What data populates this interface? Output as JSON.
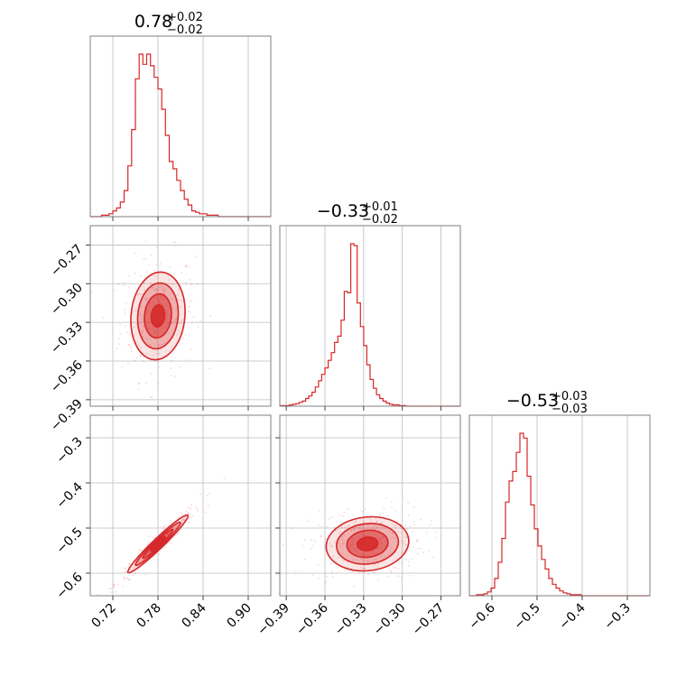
{
  "chart_data": {
    "type": "corner",
    "color": "#d62728",
    "grid": true,
    "parameters": [
      {
        "median": "0.78",
        "plus": "+0.02",
        "minus": "−0.02",
        "range": [
          0.69,
          0.93
        ],
        "ticks": [
          0.72,
          0.78,
          0.84,
          0.9
        ],
        "tick_labels": [
          "0.72",
          "0.78",
          "0.84",
          "0.90"
        ],
        "hist_edges_start": 0.69,
        "hist_bin": 0.005,
        "hist_counts": [
          0,
          0,
          0,
          1,
          1,
          2,
          4,
          6,
          10,
          18,
          35,
          60,
          95,
          112,
          105,
          112,
          104,
          96,
          88,
          74,
          56,
          38,
          33,
          25,
          18,
          12,
          8,
          4,
          3,
          2,
          2,
          1,
          1,
          1,
          0,
          0,
          0,
          0,
          0,
          0,
          0,
          0,
          0,
          0,
          0,
          0,
          0,
          0
        ]
      },
      {
        "median": "−0.33",
        "plus": "+0.01",
        "minus": "−0.02",
        "range": [
          -0.395,
          -0.255
        ],
        "ticks": [
          -0.39,
          -0.36,
          -0.33,
          -0.3,
          -0.27
        ],
        "tick_labels": [
          "−0.39",
          "−0.36",
          "−0.33",
          "−0.30",
          "−0.27"
        ],
        "hist_edges_start": -0.395,
        "hist_bin": 0.0025,
        "hist_counts": [
          1,
          1,
          1,
          2,
          3,
          4,
          6,
          8,
          12,
          16,
          22,
          30,
          40,
          50,
          60,
          72,
          84,
          100,
          110,
          135,
          180,
          178,
          255,
          252,
          162,
          125,
          95,
          65,
          42,
          28,
          18,
          12,
          8,
          5,
          3,
          2,
          2,
          1,
          1,
          0,
          0,
          0,
          0,
          0,
          0,
          0,
          0,
          0,
          0,
          0,
          0,
          0,
          0,
          0,
          0,
          0
        ]
      },
      {
        "median": "−0.53",
        "plus": "+0.03",
        "minus": "−0.03",
        "range": [
          -0.65,
          -0.25
        ],
        "ticks": [
          -0.6,
          -0.5,
          -0.4,
          -0.3
        ],
        "tick_labels": [
          "−0.6",
          "−0.5",
          "−0.4",
          "−0.3"
        ],
        "hist_edges_start": -0.65,
        "hist_bin": 0.008,
        "hist_counts": [
          0,
          0,
          1,
          1,
          2,
          4,
          8,
          18,
          35,
          60,
          98,
          120,
          130,
          150,
          170,
          165,
          125,
          95,
          70,
          52,
          38,
          28,
          18,
          12,
          8,
          5,
          3,
          2,
          1,
          1,
          1,
          0,
          0,
          0,
          0,
          0,
          0,
          0,
          0,
          0,
          0,
          0,
          0,
          0,
          0,
          0,
          0,
          0,
          0,
          0
        ]
      }
    ],
    "pairs": [
      {
        "row": 1,
        "col": 0,
        "center": [
          0.78,
          -0.325
        ],
        "sigma": [
          0.018,
          0.017
        ],
        "rho": 0.1,
        "points": 300
      },
      {
        "row": 2,
        "col": 0,
        "center": [
          0.78,
          -0.535
        ],
        "sigma": [
          0.02,
          0.032
        ],
        "rho": 0.97,
        "points": 300
      },
      {
        "row": 2,
        "col": 1,
        "center": [
          -0.327,
          -0.535
        ],
        "sigma": [
          0.016,
          0.03
        ],
        "rho": 0.1,
        "points": 300
      }
    ]
  }
}
